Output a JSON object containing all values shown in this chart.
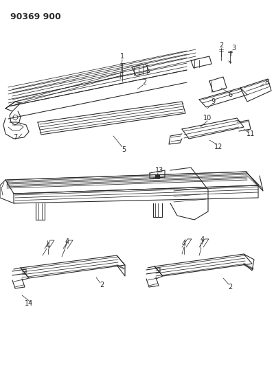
{
  "title": "90369 900",
  "bg": "#ffffff",
  "lc": "#2a2a2a",
  "fig_w": 3.99,
  "fig_h": 5.33,
  "dpi": 100
}
